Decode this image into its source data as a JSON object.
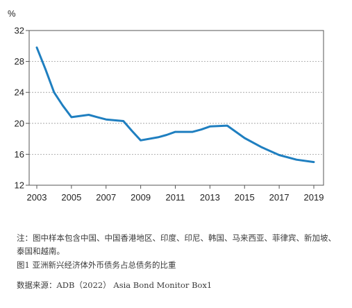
{
  "chart_data": {
    "type": "line",
    "title": "",
    "xlabel": "",
    "ylabel": "%",
    "xlim": [
      2003,
      2019
    ],
    "ylim": [
      12,
      32
    ],
    "x_ticks": [
      "2003",
      "2005",
      "2007",
      "2009",
      "2011",
      "2013",
      "2015",
      "2017",
      "2019"
    ],
    "y_ticks": [
      "12",
      "16",
      "20",
      "24",
      "28",
      "32"
    ],
    "grid": "horizontal dashed",
    "line_color": "#1f7fc0",
    "series": [
      {
        "name": "",
        "x": [
          2003,
          2003.5,
          2004,
          2004.5,
          2005,
          2006,
          2006.5,
          2007,
          2008,
          2008.5,
          2009,
          2010,
          2010.5,
          2011,
          2012,
          2012.5,
          2013,
          2014,
          2015,
          2016,
          2017,
          2018,
          2019
        ],
        "values": [
          29.8,
          27.0,
          24.0,
          22.3,
          20.8,
          21.1,
          20.8,
          20.5,
          20.3,
          19.0,
          17.8,
          18.2,
          18.5,
          18.9,
          18.9,
          19.2,
          19.6,
          19.7,
          18.1,
          16.9,
          15.9,
          15.3,
          15.0
        ]
      }
    ]
  },
  "caption": {
    "note": "注：图中样本包含中国、中国香港地区、印度、印尼、韩国、马来西亚、菲律宾、新加坡、泰国和越南。",
    "figure_title": "图1  亚洲新兴经济体外币债务占总债务的比重",
    "source": "数据来源：ADB（2022）  Asia Bond Monitor Box1"
  }
}
